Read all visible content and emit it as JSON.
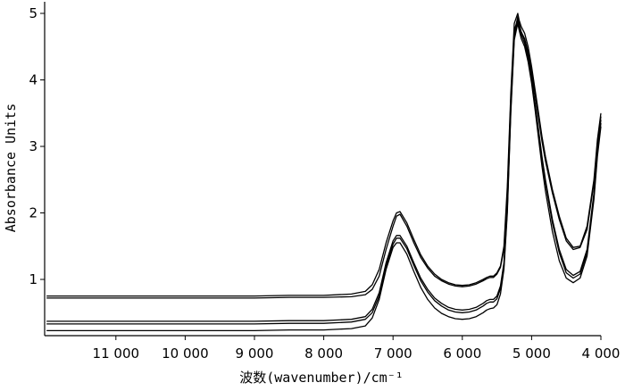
{
  "chart_data": {
    "type": "line",
    "title": "",
    "xlabel": "波数(wavenumber)/cm⁻¹",
    "ylabel": "Absorbance Units",
    "x_reversed": true,
    "xlim": [
      12000,
      4000
    ],
    "ylim": [
      0.2,
      5.1
    ],
    "x_ticks": [
      11000,
      10000,
      9000,
      8000,
      7000,
      6000,
      5000,
      4000
    ],
    "x_tick_labels": [
      "11 000",
      "10 000",
      "9 000",
      "8 000",
      "7 000",
      "6 000",
      "5 000",
      "4 000"
    ],
    "y_ticks": [
      1,
      2,
      3,
      4,
      5
    ],
    "y_tick_labels": [
      "1",
      "2",
      "3",
      "4",
      "5"
    ],
    "grid": false,
    "legend": "none",
    "line_color": "#000000",
    "series": [
      {
        "x": [
          12000,
          11000,
          10000,
          9000,
          8500,
          8000,
          7600,
          7400,
          7300,
          7200,
          7100,
          7000,
          6950,
          6900,
          6800,
          6700,
          6600,
          6500,
          6400,
          6300,
          6200,
          6100,
          6000,
          5900,
          5800,
          5700,
          5650,
          5600,
          5550,
          5500,
          5450,
          5400,
          5350,
          5300,
          5250,
          5200,
          5180,
          5150,
          5100,
          5050,
          5000,
          4950,
          4900,
          4850,
          4800,
          4700,
          4600,
          4500,
          4400,
          4300,
          4200,
          4100,
          4050,
          4000
        ],
        "y": [
          0.75,
          0.75,
          0.75,
          0.75,
          0.76,
          0.76,
          0.78,
          0.82,
          0.92,
          1.15,
          1.55,
          1.88,
          2.0,
          2.02,
          1.85,
          1.6,
          1.37,
          1.2,
          1.08,
          1.0,
          0.95,
          0.92,
          0.91,
          0.92,
          0.95,
          1.0,
          1.03,
          1.05,
          1.05,
          1.1,
          1.2,
          1.5,
          2.4,
          3.8,
          4.85,
          5.0,
          4.9,
          4.8,
          4.7,
          4.5,
          4.2,
          3.85,
          3.5,
          3.15,
          2.85,
          2.35,
          1.95,
          1.62,
          1.48,
          1.5,
          1.8,
          2.5,
          3.1,
          3.5
        ]
      },
      {
        "x": [
          12000,
          11000,
          10000,
          9000,
          8500,
          8000,
          7600,
          7400,
          7300,
          7200,
          7100,
          7000,
          6950,
          6900,
          6800,
          6700,
          6600,
          6500,
          6400,
          6300,
          6200,
          6100,
          6000,
          5900,
          5800,
          5700,
          5650,
          5600,
          5550,
          5500,
          5450,
          5400,
          5350,
          5300,
          5250,
          5200,
          5180,
          5150,
          5100,
          5050,
          5000,
          4950,
          4900,
          4850,
          4800,
          4700,
          4600,
          4500,
          4400,
          4300,
          4200,
          4100,
          4050,
          4000
        ],
        "y": [
          0.72,
          0.72,
          0.72,
          0.72,
          0.73,
          0.73,
          0.74,
          0.77,
          0.85,
          1.05,
          1.45,
          1.8,
          1.95,
          1.98,
          1.8,
          1.55,
          1.33,
          1.17,
          1.05,
          0.98,
          0.93,
          0.9,
          0.89,
          0.9,
          0.93,
          0.98,
          1.01,
          1.03,
          1.03,
          1.08,
          1.18,
          1.45,
          2.3,
          3.7,
          4.75,
          4.9,
          4.82,
          4.72,
          4.62,
          4.42,
          4.12,
          3.78,
          3.42,
          3.08,
          2.78,
          2.3,
          1.9,
          1.58,
          1.45,
          1.48,
          1.75,
          2.45,
          3.05,
          3.45
        ]
      },
      {
        "x": [
          12000,
          11000,
          10000,
          9000,
          8500,
          8000,
          7600,
          7400,
          7300,
          7200,
          7100,
          7000,
          6950,
          6900,
          6800,
          6700,
          6600,
          6500,
          6400,
          6300,
          6200,
          6100,
          6000,
          5900,
          5800,
          5700,
          5650,
          5600,
          5550,
          5500,
          5450,
          5400,
          5350,
          5300,
          5250,
          5200,
          5180,
          5150,
          5100,
          5050,
          5000,
          4950,
          4900,
          4850,
          4800,
          4700,
          4600,
          4500,
          4400,
          4300,
          4200,
          4100,
          4050,
          4000
        ],
        "y": [
          0.37,
          0.37,
          0.37,
          0.37,
          0.38,
          0.38,
          0.4,
          0.44,
          0.55,
          0.8,
          1.25,
          1.58,
          1.66,
          1.66,
          1.5,
          1.25,
          1.02,
          0.85,
          0.72,
          0.64,
          0.58,
          0.55,
          0.54,
          0.55,
          0.58,
          0.64,
          0.68,
          0.7,
          0.7,
          0.75,
          0.9,
          1.25,
          2.1,
          3.6,
          4.7,
          4.95,
          4.85,
          4.72,
          4.6,
          4.38,
          4.05,
          3.65,
          3.25,
          2.85,
          2.5,
          1.9,
          1.45,
          1.15,
          1.06,
          1.12,
          1.45,
          2.3,
          2.95,
          3.4
        ]
      },
      {
        "x": [
          12000,
          11000,
          10000,
          9000,
          8500,
          8000,
          7600,
          7400,
          7300,
          7200,
          7100,
          7000,
          6950,
          6900,
          6800,
          6700,
          6600,
          6500,
          6400,
          6300,
          6200,
          6100,
          6000,
          5900,
          5800,
          5700,
          5650,
          5600,
          5550,
          5500,
          5450,
          5400,
          5350,
          5300,
          5250,
          5200,
          5180,
          5150,
          5100,
          5050,
          5000,
          4950,
          4900,
          4850,
          4800,
          4700,
          4600,
          4500,
          4400,
          4300,
          4200,
          4100,
          4050,
          4000
        ],
        "y": [
          0.33,
          0.33,
          0.33,
          0.33,
          0.34,
          0.34,
          0.36,
          0.4,
          0.5,
          0.75,
          1.2,
          1.53,
          1.62,
          1.62,
          1.46,
          1.21,
          0.98,
          0.81,
          0.68,
          0.6,
          0.54,
          0.51,
          0.5,
          0.51,
          0.54,
          0.6,
          0.64,
          0.66,
          0.66,
          0.71,
          0.86,
          1.2,
          2.05,
          3.55,
          4.65,
          4.9,
          4.8,
          4.68,
          4.55,
          4.33,
          4.0,
          3.6,
          3.2,
          2.8,
          2.45,
          1.85,
          1.4,
          1.1,
          1.02,
          1.08,
          1.4,
          2.25,
          2.9,
          3.35
        ]
      },
      {
        "x": [
          12000,
          11000,
          10000,
          9000,
          8500,
          8000,
          7600,
          7400,
          7300,
          7200,
          7100,
          7000,
          6950,
          6900,
          6800,
          6700,
          6600,
          6500,
          6400,
          6300,
          6200,
          6100,
          6000,
          5900,
          5800,
          5700,
          5650,
          5600,
          5550,
          5500,
          5450,
          5400,
          5350,
          5300,
          5250,
          5200,
          5180,
          5150,
          5100,
          5050,
          5000,
          4950,
          4900,
          4850,
          4800,
          4700,
          4600,
          4500,
          4400,
          4300,
          4200,
          4100,
          4050,
          4000
        ],
        "y": [
          0.23,
          0.23,
          0.23,
          0.23,
          0.24,
          0.24,
          0.26,
          0.3,
          0.42,
          0.7,
          1.15,
          1.48,
          1.55,
          1.55,
          1.38,
          1.12,
          0.88,
          0.7,
          0.57,
          0.49,
          0.44,
          0.41,
          0.4,
          0.41,
          0.44,
          0.5,
          0.54,
          0.56,
          0.57,
          0.62,
          0.78,
          1.15,
          2.0,
          3.5,
          4.6,
          4.85,
          4.75,
          4.62,
          4.5,
          4.27,
          3.95,
          3.55,
          3.12,
          2.7,
          2.33,
          1.72,
          1.28,
          1.02,
          0.95,
          1.02,
          1.35,
          2.2,
          2.85,
          3.3
        ]
      }
    ]
  }
}
